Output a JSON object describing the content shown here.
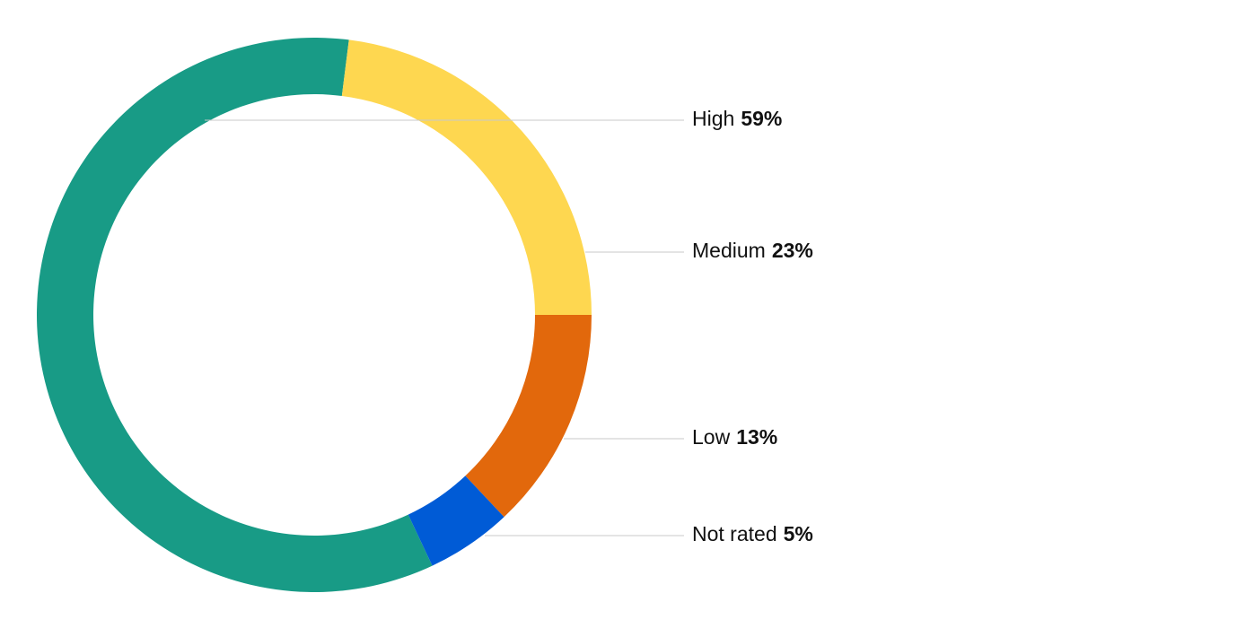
{
  "chart_data": {
    "type": "donut",
    "categories": [
      "High",
      "Medium",
      "Low",
      "Not rated"
    ],
    "values": [
      59,
      23,
      13,
      5
    ],
    "value_labels": [
      "59%",
      "23%",
      "13%",
      "5%"
    ],
    "colors": [
      "#189b86",
      "#fed750",
      "#e2680c",
      "#005bd6"
    ]
  }
}
